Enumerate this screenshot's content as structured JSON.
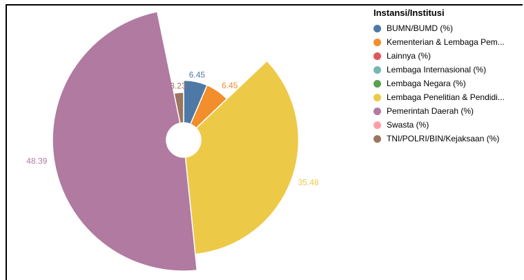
{
  "chart_data": {
    "type": "pie",
    "subtype": "polar-area",
    "legend_title": "Instansi/Institusi",
    "legend_position": "top-right",
    "categories": [
      "BUMN/BUMD (%)",
      "Kementerian & Lembaga Pem...",
      "Lainnya (%)",
      "Lembaga Internasional (%)",
      "Lembaga Negara (%)",
      "Lembaga Penelitian & Pendidi...",
      "Pemerintah Daerah (%)",
      "Swasta (%)",
      "TNI/POLRI/BIN/Kejaksaan (%)"
    ],
    "values": [
      6.45,
      6.45,
      0,
      0,
      0,
      35.48,
      48.39,
      0,
      3.23
    ],
    "data_labels": [
      "6.45",
      "6.45",
      "",
      "",
      "",
      "35.48",
      "48.39",
      "",
      "3.23"
    ],
    "colors": [
      "#4e79a7",
      "#f28e2b",
      "#e15759",
      "#76b7b2",
      "#59a14f",
      "#edc948",
      "#b07aa1",
      "#ff9da7",
      "#9c755f"
    ]
  }
}
